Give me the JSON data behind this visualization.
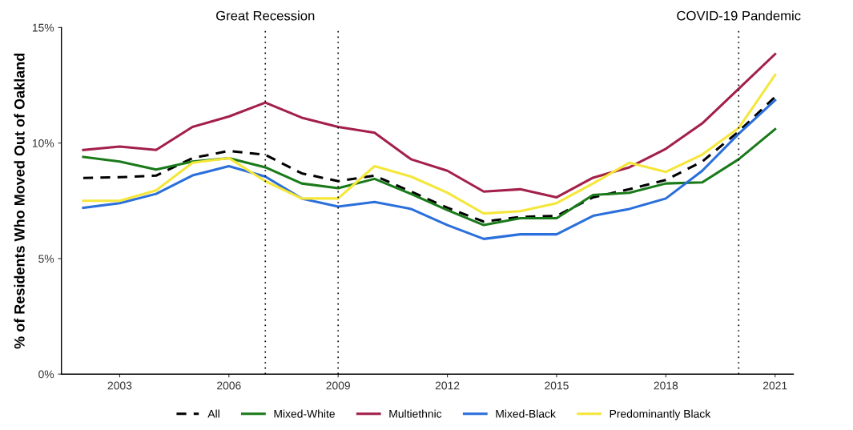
{
  "chart_data": {
    "type": "line",
    "ylabel": "% of Residents Who Moved Out of Oakland",
    "x": [
      2002,
      2003,
      2004,
      2005,
      2006,
      2007,
      2008,
      2009,
      2010,
      2011,
      2012,
      2013,
      2014,
      2015,
      2016,
      2017,
      2018,
      2019,
      2020,
      2021
    ],
    "series": [
      {
        "name": "All",
        "color": "#000000",
        "line_style": "dashed",
        "values": [
          8.49,
          8.52,
          8.59,
          9.35,
          9.66,
          9.49,
          8.69,
          8.35,
          8.59,
          7.9,
          7.2,
          6.6,
          6.8,
          6.85,
          7.65,
          8.0,
          8.4,
          9.2,
          10.5,
          12.0
        ]
      },
      {
        "name": "Mixed-White",
        "color": "#1a7a1a",
        "values": [
          9.4,
          9.2,
          8.85,
          9.2,
          9.35,
          8.95,
          8.25,
          8.05,
          8.45,
          7.8,
          7.1,
          6.45,
          6.75,
          6.75,
          7.75,
          7.85,
          8.25,
          8.3,
          9.3,
          10.6
        ]
      },
      {
        "name": "Multiethnic",
        "color": "#a3204a",
        "values": [
          9.7,
          9.85,
          9.7,
          10.7,
          11.15,
          11.75,
          11.1,
          10.7,
          10.45,
          9.3,
          8.8,
          7.9,
          8.0,
          7.65,
          8.5,
          8.95,
          9.75,
          10.85,
          12.35,
          13.85
        ]
      },
      {
        "name": "Mixed-Black",
        "color": "#2a6fdb",
        "values": [
          7.2,
          7.4,
          7.8,
          8.6,
          9.0,
          8.55,
          7.6,
          7.25,
          7.45,
          7.15,
          6.45,
          5.85,
          6.05,
          6.05,
          6.85,
          7.15,
          7.6,
          8.8,
          10.4,
          11.85
        ]
      },
      {
        "name": "Predominantly Black",
        "color": "#f5e63a",
        "values": [
          7.5,
          7.5,
          7.95,
          9.15,
          9.35,
          8.35,
          7.6,
          7.6,
          9.0,
          8.55,
          7.85,
          6.95,
          7.05,
          7.4,
          8.25,
          9.15,
          8.75,
          9.5,
          10.65,
          12.95
        ]
      }
    ],
    "xlim": [
      2001.4,
      2021.5
    ],
    "xticks": [
      2003,
      2006,
      2009,
      2012,
      2015,
      2018,
      2021
    ],
    "ylim": [
      0,
      15
    ],
    "yticks": [
      {
        "value": 0,
        "label": "0%"
      },
      {
        "value": 5,
        "label": "5%"
      },
      {
        "value": 10,
        "label": "10%"
      },
      {
        "value": 15,
        "label": "15%"
      }
    ],
    "ref_lines": [
      {
        "axis": "x",
        "value": 2007,
        "label": "Great Recession",
        "line_style": "dotted",
        "color": "#000000"
      },
      {
        "axis": "x",
        "value": 2009,
        "label": null,
        "line_style": "dotted",
        "color": "#000000"
      },
      {
        "axis": "x",
        "value": 2020,
        "label": "COVID-19 Pandemic",
        "line_style": "dotted",
        "color": "#000000"
      }
    ],
    "grid": false,
    "legend": "bottom"
  }
}
